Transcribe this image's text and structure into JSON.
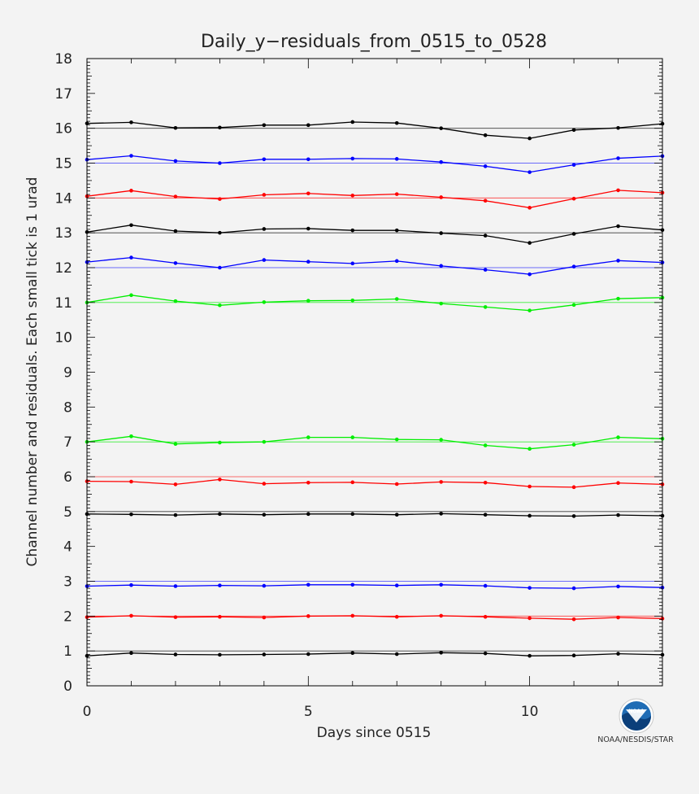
{
  "chart_data": {
    "type": "line",
    "title": "Daily_y−residuals_from_0515_to_0528",
    "xlabel": "Days since 0515",
    "ylabel": "Channel number and residuals. Each small tick is 1 urad",
    "xlim": [
      0,
      13
    ],
    "ylim": [
      0,
      18
    ],
    "x_ticks": [
      0,
      5,
      10
    ],
    "y_ticks": [
      0,
      1,
      2,
      3,
      4,
      5,
      6,
      7,
      8,
      9,
      10,
      11,
      12,
      13,
      14,
      15,
      16,
      17,
      18
    ],
    "x": [
      0,
      1,
      2,
      3,
      4,
      5,
      6,
      7,
      8,
      9,
      10,
      11,
      12,
      13
    ],
    "series": [
      {
        "name": "ch1",
        "baseline": 1,
        "color": "#000000",
        "values": [
          0.86,
          0.94,
          0.9,
          0.89,
          0.9,
          0.91,
          0.94,
          0.91,
          0.95,
          0.93,
          0.86,
          0.87,
          0.92,
          0.89
        ]
      },
      {
        "name": "ch2",
        "baseline": 2,
        "color": "#ff0000",
        "values": [
          1.97,
          2.01,
          1.97,
          1.98,
          1.96,
          2.0,
          2.01,
          1.98,
          2.01,
          1.98,
          1.94,
          1.91,
          1.96,
          1.93
        ]
      },
      {
        "name": "ch3",
        "baseline": 3,
        "color": "#0000ff",
        "values": [
          2.86,
          2.89,
          2.86,
          2.88,
          2.87,
          2.9,
          2.9,
          2.88,
          2.9,
          2.87,
          2.81,
          2.8,
          2.85,
          2.82
        ]
      },
      {
        "name": "ch5",
        "baseline": 5,
        "color": "#000000",
        "values": [
          4.93,
          4.92,
          4.9,
          4.93,
          4.91,
          4.93,
          4.93,
          4.91,
          4.94,
          4.91,
          4.88,
          4.87,
          4.9,
          4.88
        ]
      },
      {
        "name": "ch6",
        "baseline": 6,
        "color": "#ff0000",
        "values": [
          5.87,
          5.86,
          5.78,
          5.92,
          5.8,
          5.83,
          5.84,
          5.79,
          5.85,
          5.83,
          5.72,
          5.7,
          5.82,
          5.78
        ]
      },
      {
        "name": "ch7",
        "baseline": 7,
        "color": "#00ee00",
        "values": [
          7.0,
          7.16,
          6.94,
          6.98,
          7.0,
          7.13,
          7.13,
          7.07,
          7.06,
          6.9,
          6.8,
          6.92,
          7.13,
          7.09
        ]
      },
      {
        "name": "ch11",
        "baseline": 11,
        "color": "#00ee00",
        "values": [
          11.0,
          11.21,
          11.04,
          10.92,
          11.01,
          11.05,
          11.06,
          11.1,
          10.97,
          10.87,
          10.77,
          10.93,
          11.11,
          11.14
        ]
      },
      {
        "name": "ch12",
        "baseline": 12,
        "color": "#0000ff",
        "values": [
          12.16,
          12.29,
          12.13,
          12.0,
          12.22,
          12.17,
          12.12,
          12.19,
          12.05,
          11.94,
          11.81,
          12.03,
          12.2,
          12.15
        ]
      },
      {
        "name": "ch13",
        "baseline": 13,
        "color": "#000000",
        "values": [
          13.02,
          13.22,
          13.05,
          13.0,
          13.11,
          13.12,
          13.07,
          13.07,
          12.99,
          12.92,
          12.71,
          12.97,
          13.19,
          13.08
        ]
      },
      {
        "name": "ch14",
        "baseline": 14,
        "color": "#ff0000",
        "values": [
          14.05,
          14.21,
          14.04,
          13.97,
          14.09,
          14.13,
          14.07,
          14.11,
          14.02,
          13.92,
          13.72,
          13.98,
          14.22,
          14.15
        ]
      },
      {
        "name": "ch15",
        "baseline": 15,
        "color": "#0000ff",
        "values": [
          15.1,
          15.21,
          15.06,
          15.0,
          15.11,
          15.11,
          15.13,
          15.12,
          15.03,
          14.91,
          14.74,
          14.95,
          15.14,
          15.2
        ]
      },
      {
        "name": "ch16",
        "baseline": 16,
        "color": "#000000",
        "values": [
          16.14,
          16.17,
          16.01,
          16.02,
          16.09,
          16.09,
          16.18,
          16.15,
          16.0,
          15.8,
          15.71,
          15.95,
          16.01,
          16.13
        ]
      }
    ]
  },
  "logo": {
    "emblem_text": "NOAA",
    "caption": "NOAA/NESDIS/STAR"
  },
  "colors": {
    "background": "#f3f3f3",
    "axis": "#000000",
    "noaa_blue": "#1f6cb5",
    "noaa_dark": "#0b3f7a"
  }
}
